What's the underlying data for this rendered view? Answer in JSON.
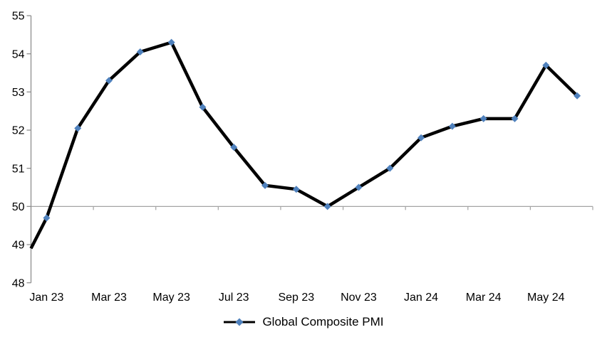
{
  "page": {
    "background": "#FFFFFF"
  },
  "chart_data": {
    "type": "line",
    "title": "",
    "categories": [
      "Jan 23",
      "Feb 23",
      "Mar 23",
      "Apr 23",
      "May 23",
      "Jun 23",
      "Jul 23",
      "Aug 23",
      "Sep 23",
      "Oct 23",
      "Nov 23",
      "Dec 23",
      "Jan 24",
      "Feb 24",
      "Mar 24",
      "Apr 24",
      "May 24",
      "Jun 24"
    ],
    "series": [
      {
        "name": "Global Composite PMI",
        "values": [
          49.7,
          52.05,
          53.3,
          54.05,
          54.3,
          52.6,
          51.55,
          50.55,
          50.45,
          50.0,
          50.5,
          51.0,
          51.8,
          52.1,
          52.3,
          52.3,
          53.7,
          52.9
        ]
      }
    ],
    "leading_edge_clip": {
      "note": "series line enters the plot from the left value axis (prior point clipped)",
      "value_at_axis": 48.9
    },
    "ylim": [
      48,
      55
    ],
    "y_ticks": [
      55,
      54,
      53,
      52,
      51,
      50,
      49,
      48
    ],
    "x_tick_labels": [
      "Jan 23",
      "Mar 23",
      "May 23",
      "Jul 23",
      "Sep 23",
      "Nov 23",
      "Jan 24",
      "Mar 24",
      "May 24"
    ],
    "x_label_interval": 2,
    "category_axis_cross_value": 50,
    "grid": "single horizontal axis line at 50, no other gridlines",
    "legend": {
      "label": "Global Composite PMI",
      "position": "bottom-center"
    },
    "colors": {
      "line": "#000000",
      "marker": "#4F81BD",
      "value_axis": "#8E8E8E",
      "category_axis": "#A3A3A3",
      "text": "#000000"
    }
  }
}
